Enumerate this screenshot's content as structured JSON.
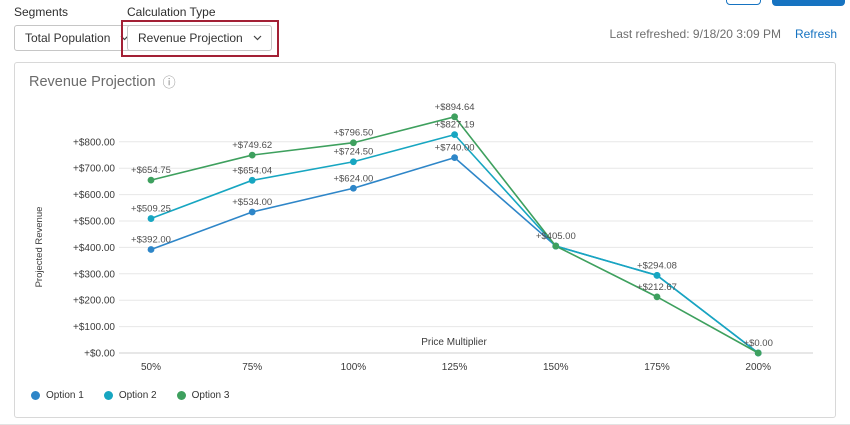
{
  "header": {
    "segments": {
      "label": "Segments",
      "value": "Total Population"
    },
    "calculation_type": {
      "label": "Calculation Type",
      "value": "Revenue Projection"
    },
    "last_refreshed": "Last refreshed: 9/18/20 3:09 PM",
    "refresh": "Refresh"
  },
  "card": {
    "title": "Revenue Projection"
  },
  "icons": {
    "info_icon": "ⓘ"
  },
  "colors": {
    "accent_blue": "#1673c1",
    "annotation_red": "#a32035",
    "option1_blue": "#2e86c8",
    "option2_teal": "#17a6c1",
    "option3_green": "#3ea05e"
  },
  "chart_data": {
    "type": "line",
    "title": "Revenue Projection",
    "xlabel": "Price Multiplier",
    "ylabel": "Projected Revenue",
    "categories": [
      "50%",
      "75%",
      "100%",
      "125%",
      "150%",
      "175%",
      "200%"
    ],
    "y_tick_labels": [
      "+$0.00",
      "+$100.00",
      "+$200.00",
      "+$300.00",
      "+$400.00",
      "+$500.00",
      "+$600.00",
      "+$700.00",
      "+$800.00"
    ],
    "ylim": [
      0,
      900
    ],
    "grid": true,
    "legend_position": "bottom-left",
    "series": [
      {
        "name": "Option 1",
        "color": "#2e86c8",
        "values": [
          392.0,
          534.0,
          624.0,
          740.0,
          405.0,
          294.08,
          0.0
        ],
        "labels": [
          "+$392.00",
          "+$534.00",
          "+$624.00",
          "+$740.00",
          null,
          null,
          null
        ]
      },
      {
        "name": "Option 2",
        "color": "#17a6c1",
        "values": [
          509.25,
          654.04,
          724.5,
          827.19,
          405.0,
          294.08,
          0.0
        ],
        "labels": [
          "+$509.25",
          "+$654.04",
          "+$724.50",
          "+$827.19",
          null,
          "+$294.08",
          null
        ]
      },
      {
        "name": "Option 3",
        "color": "#3ea05e",
        "values": [
          654.75,
          749.62,
          796.5,
          894.64,
          405.0,
          212.67,
          0.0
        ],
        "labels": [
          "+$654.75",
          "+$749.62",
          "+$796.50",
          "+$894.64",
          "+$405.00",
          "+$212.67",
          "+$0.00"
        ]
      }
    ]
  }
}
